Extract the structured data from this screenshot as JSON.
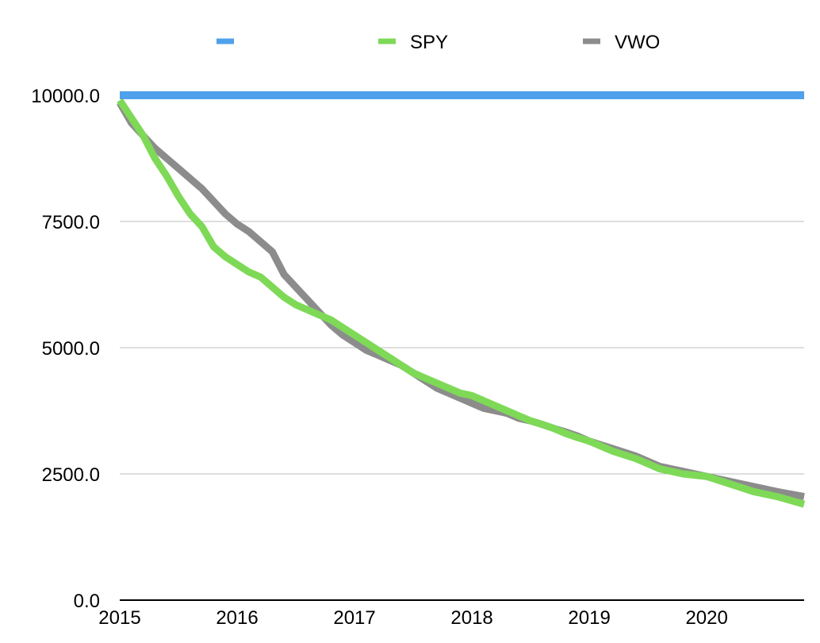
{
  "chart_data": {
    "type": "line",
    "title": "",
    "xlabel": "",
    "ylabel": "",
    "xlim": [
      2015,
      2020.83
    ],
    "ylim": [
      0,
      10000
    ],
    "grid": true,
    "legend_position": "top",
    "x_ticks": [
      "2015",
      "2016",
      "2017",
      "2018",
      "2019",
      "2020"
    ],
    "y_ticks": [
      "0.0",
      "2500.0",
      "5000.0",
      "7500.0",
      "10000.0"
    ],
    "series": [
      {
        "name": "",
        "color": "#4ea1ea",
        "x": [
          2015.0,
          2020.83
        ],
        "y": [
          10000,
          10000
        ]
      },
      {
        "name": "SPY",
        "color": "#7ed957",
        "x": [
          2015.0,
          2015.1,
          2015.2,
          2015.3,
          2015.4,
          2015.5,
          2015.6,
          2015.7,
          2015.8,
          2015.9,
          2016.0,
          2016.1,
          2016.2,
          2016.3,
          2016.4,
          2016.5,
          2016.6,
          2016.7,
          2016.8,
          2016.9,
          2017.0,
          2017.1,
          2017.2,
          2017.3,
          2017.4,
          2017.5,
          2017.6,
          2017.7,
          2017.8,
          2017.9,
          2018.0,
          2018.1,
          2018.2,
          2018.3,
          2018.4,
          2018.5,
          2018.6,
          2018.7,
          2018.8,
          2018.9,
          2019.0,
          2019.2,
          2019.4,
          2019.6,
          2019.8,
          2020.0,
          2020.2,
          2020.4,
          2020.6,
          2020.83
        ],
        "y": [
          9900,
          9550,
          9200,
          8750,
          8400,
          8000,
          7650,
          7400,
          7000,
          6800,
          6650,
          6500,
          6400,
          6200,
          6000,
          5850,
          5750,
          5650,
          5550,
          5400,
          5250,
          5100,
          4950,
          4800,
          4650,
          4500,
          4400,
          4300,
          4200,
          4100,
          4050,
          3950,
          3850,
          3750,
          3650,
          3550,
          3480,
          3400,
          3300,
          3220,
          3150,
          2950,
          2800,
          2600,
          2500,
          2450,
          2300,
          2150,
          2050,
          1900
        ]
      },
      {
        "name": "VWO",
        "color": "#8c8c8c",
        "x": [
          2015.0,
          2015.1,
          2015.2,
          2015.3,
          2015.4,
          2015.5,
          2015.6,
          2015.7,
          2015.8,
          2015.9,
          2016.0,
          2016.1,
          2016.2,
          2016.3,
          2016.4,
          2016.5,
          2016.6,
          2016.7,
          2016.8,
          2016.9,
          2017.0,
          2017.1,
          2017.2,
          2017.3,
          2017.4,
          2017.5,
          2017.6,
          2017.7,
          2017.8,
          2017.9,
          2018.0,
          2018.1,
          2018.2,
          2018.3,
          2018.4,
          2018.5,
          2018.6,
          2018.7,
          2018.8,
          2018.9,
          2019.0,
          2019.2,
          2019.4,
          2019.6,
          2019.8,
          2020.0,
          2020.2,
          2020.4,
          2020.6,
          2020.83
        ],
        "y": [
          9850,
          9450,
          9200,
          8950,
          8750,
          8550,
          8350,
          8150,
          7900,
          7650,
          7450,
          7300,
          7100,
          6900,
          6450,
          6200,
          5950,
          5700,
          5450,
          5250,
          5100,
          4950,
          4850,
          4750,
          4650,
          4500,
          4350,
          4200,
          4100,
          4000,
          3900,
          3800,
          3750,
          3700,
          3600,
          3550,
          3480,
          3400,
          3330,
          3250,
          3150,
          3000,
          2850,
          2650,
          2550,
          2450,
          2350,
          2250,
          2150,
          2050
        ]
      }
    ]
  }
}
